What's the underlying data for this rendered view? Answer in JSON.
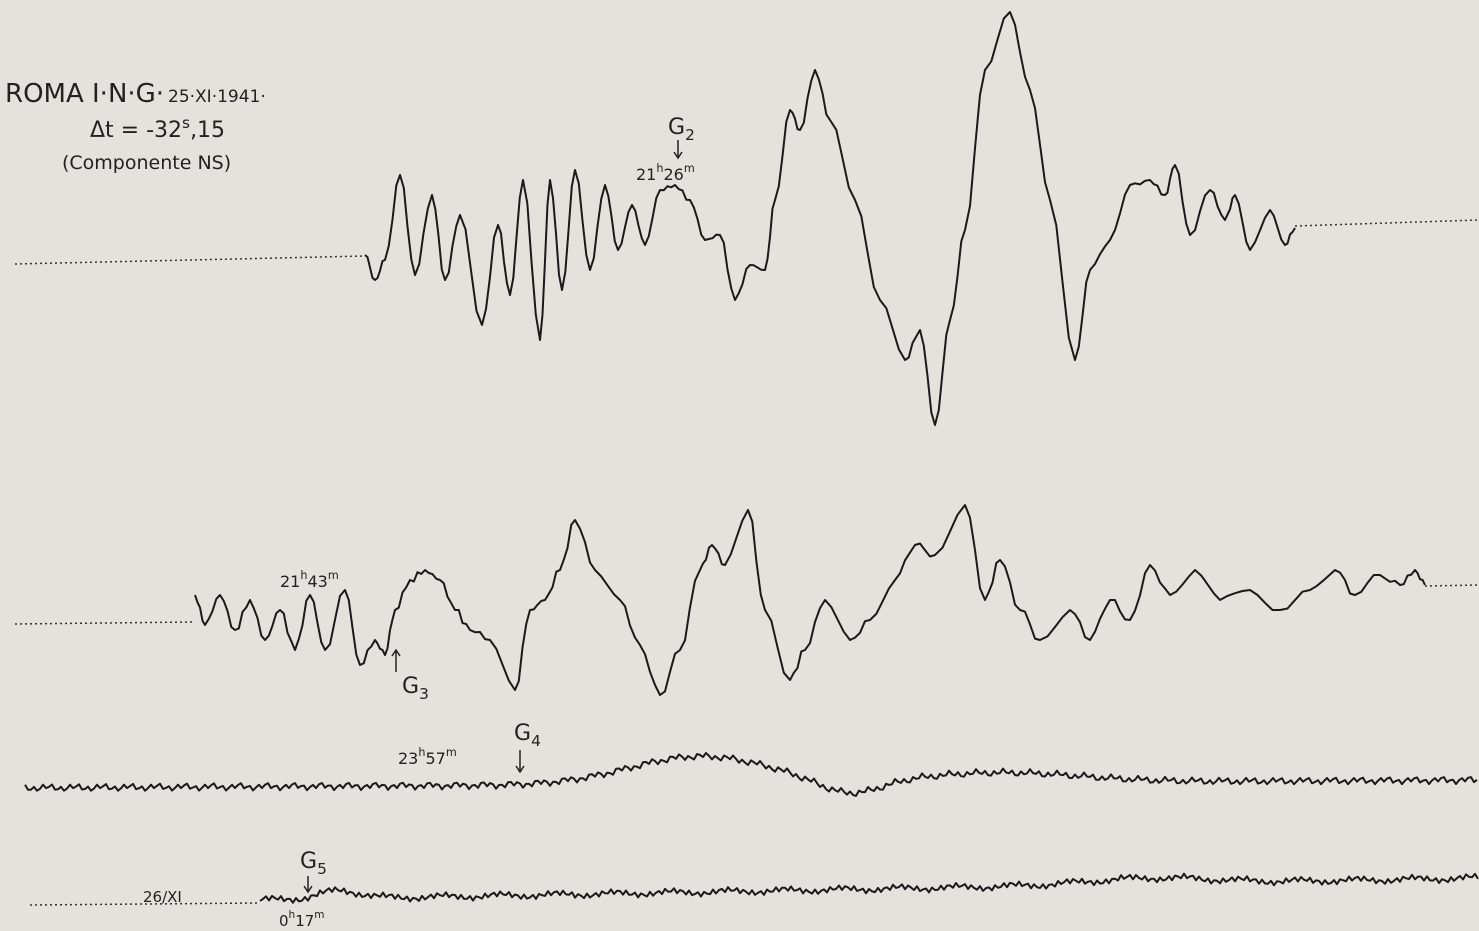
{
  "header": {
    "station": "ROMA I·N·G·",
    "date": "25·XI·1941·",
    "delta": {
      "prefix": "Δt = -32",
      "sup": "s",
      "suffix": ",15"
    },
    "component": "(Componente NS)"
  },
  "markers": [
    {
      "letter": "G",
      "sub": "2",
      "time": [
        "21",
        "h",
        "26",
        "m"
      ]
    },
    {
      "letter": null,
      "sub": null,
      "time": [
        "21",
        "h",
        "43",
        "m"
      ]
    },
    {
      "letter": "G",
      "sub": "3",
      "time": null
    },
    {
      "letter": "G",
      "sub": "4",
      "time": [
        "23",
        "h",
        "57",
        "m"
      ]
    },
    {
      "letter": "G",
      "sub": "5",
      "time": [
        "0",
        "h",
        "17",
        "m"
      ]
    }
  ],
  "date_mark": "26/XI"
}
